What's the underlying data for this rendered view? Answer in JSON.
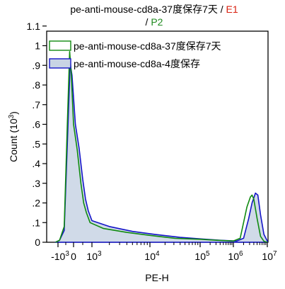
{
  "title": {
    "line1_text": "pe-anti-mouse-cd8a-37度保存7天 / ",
    "line1_gate": "E1",
    "line2_prefix": "/ ",
    "line2_gate": "P2"
  },
  "colors": {
    "gate_e1": "#d9200f",
    "gate_p2": "#1f8a1f",
    "series_green": "#108a10",
    "series_blue": "#1414c8",
    "fill_blue": "#c8d4e4"
  },
  "chart_data": {
    "type": "histogram",
    "xlabel": "PE-H",
    "ylabel_main": "Count (10",
    "ylabel_exp": "3",
    "ylabel_close": ")",
    "y_ticks": [
      {
        "value": 0,
        "label": "0"
      },
      {
        "value": 0.1,
        "label": ".1"
      },
      {
        "value": 0.2,
        "label": ".2"
      },
      {
        "value": 0.3,
        "label": ".3"
      },
      {
        "value": 0.4,
        "label": ".4"
      },
      {
        "value": 0.5,
        "label": ".5"
      },
      {
        "value": 0.6,
        "label": ".6"
      },
      {
        "value": 0.7,
        "label": ".7"
      },
      {
        "value": 0.8,
        "label": ".8"
      },
      {
        "value": 0.9,
        "label": ".9"
      },
      {
        "value": 1.0,
        "label": "1"
      },
      {
        "value": 1.1,
        "label": "1.1"
      }
    ],
    "ylim": [
      0,
      1.1
    ],
    "x_scale": "biexponential",
    "x_ticks": [
      {
        "label": "-10",
        "exp": "3"
      },
      {
        "label": "0",
        "exp": ""
      },
      {
        "label": "10",
        "exp": "3"
      },
      {
        "label": "10",
        "exp": "4"
      },
      {
        "label": "10",
        "exp": "5"
      },
      {
        "label": "10",
        "exp": "6"
      },
      {
        "label": "10",
        "exp": "7"
      }
    ],
    "series": [
      {
        "name": "pe-anti-mouse-cd8a-37度保存7天",
        "style": "outline",
        "points": [
          [
            -1.16,
            0
          ],
          [
            -0.9,
            0.01
          ],
          [
            -0.6,
            0.08
          ],
          [
            -0.4,
            0.6
          ],
          [
            -0.25,
            0.97
          ],
          [
            -0.15,
            0.86
          ],
          [
            0,
            0.6
          ],
          [
            0.2,
            0.47
          ],
          [
            0.4,
            0.3
          ],
          [
            0.55,
            0.2
          ],
          [
            0.7,
            0.15
          ],
          [
            0.9,
            0.1
          ],
          [
            1.2,
            0.07
          ],
          [
            1.6,
            0.05
          ],
          [
            2.0,
            0.035
          ],
          [
            2.5,
            0.02
          ],
          [
            3.0,
            0.015
          ],
          [
            3.5,
            0.01
          ],
          [
            4.0,
            0.006
          ],
          [
            4.2,
            0.02
          ],
          [
            4.3,
            0.1
          ],
          [
            4.4,
            0.18
          ],
          [
            4.5,
            0.23
          ],
          [
            4.55,
            0.24
          ],
          [
            4.6,
            0.22
          ],
          [
            4.7,
            0.12
          ],
          [
            4.8,
            0.03
          ],
          [
            4.9,
            0.005
          ],
          [
            5.2,
            0
          ],
          [
            7,
            0
          ]
        ]
      },
      {
        "name": "pe-anti-mouse-cd8a-4度保存",
        "style": "filled",
        "points": [
          [
            -1.16,
            0
          ],
          [
            -0.9,
            0.01
          ],
          [
            -0.6,
            0.06
          ],
          [
            -0.4,
            0.5
          ],
          [
            -0.22,
            0.91
          ],
          [
            -0.1,
            0.85
          ],
          [
            0.1,
            0.6
          ],
          [
            0.3,
            0.48
          ],
          [
            0.5,
            0.32
          ],
          [
            0.65,
            0.22
          ],
          [
            0.8,
            0.16
          ],
          [
            1.0,
            0.11
          ],
          [
            1.3,
            0.08
          ],
          [
            1.7,
            0.055
          ],
          [
            2.1,
            0.04
          ],
          [
            2.6,
            0.025
          ],
          [
            3.1,
            0.016
          ],
          [
            3.6,
            0.01
          ],
          [
            4.1,
            0.006
          ],
          [
            4.3,
            0.02
          ],
          [
            4.45,
            0.12
          ],
          [
            4.55,
            0.2
          ],
          [
            4.65,
            0.25
          ],
          [
            4.72,
            0.24
          ],
          [
            4.8,
            0.14
          ],
          [
            4.9,
            0.04
          ],
          [
            5.0,
            0.006
          ],
          [
            5.3,
            0
          ],
          [
            7,
            0
          ]
        ]
      }
    ]
  }
}
